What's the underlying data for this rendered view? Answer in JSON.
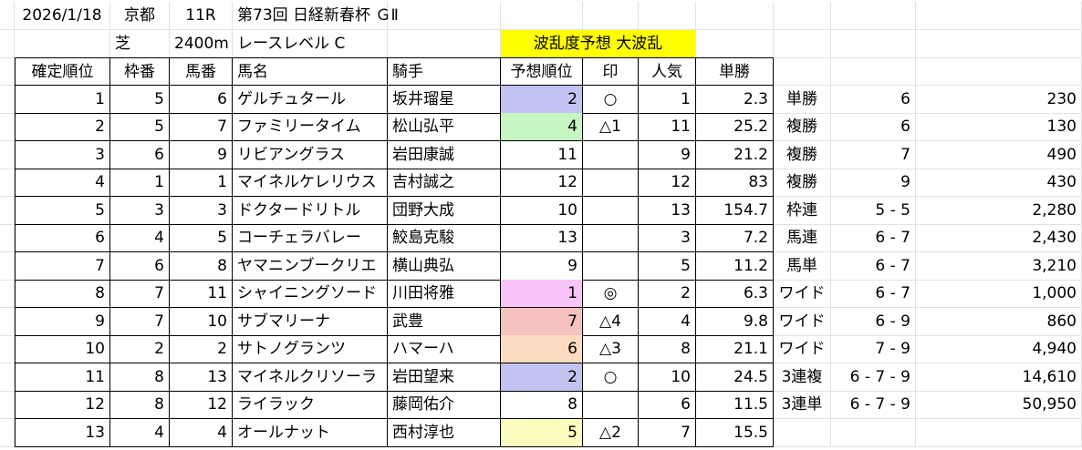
{
  "info": {
    "date": "2026/1/18",
    "venue": "京都",
    "race_no": "11R",
    "race_name": "第73回 日経新春杯 ＧⅡ",
    "surface": "芝",
    "distance": "2400m",
    "level": "レースレベル C",
    "banner": "波乱度予想 大波乱",
    "banner_color": "#ffff00"
  },
  "headers": [
    "確定順位",
    "枠番",
    "馬番",
    "馬名",
    "騎手",
    "予想順位",
    "印",
    "人気",
    "単勝"
  ],
  "rows": [
    {
      "rank": "1",
      "waku": "5",
      "uma": "6",
      "name": "ゲルチュタール",
      "jockey": "坂井瑠星",
      "pred": "2",
      "mark": "○",
      "pop": "1",
      "odds": "2.3",
      "color": "#c3c3f3"
    },
    {
      "rank": "2",
      "waku": "5",
      "uma": "7",
      "name": "ファミリータイム",
      "jockey": "松山弘平",
      "pred": "4",
      "mark": "△1",
      "pop": "11",
      "odds": "25.2",
      "color": "#c6f7c2"
    },
    {
      "rank": "3",
      "waku": "6",
      "uma": "9",
      "name": "リビアングラス",
      "jockey": "岩田康誠",
      "pred": "11",
      "mark": "",
      "pop": "9",
      "odds": "21.2",
      "color": ""
    },
    {
      "rank": "4",
      "waku": "1",
      "uma": "1",
      "name": "マイネルケレリウス",
      "jockey": "吉村誠之",
      "pred": "12",
      "mark": "",
      "pop": "12",
      "odds": "83",
      "color": ""
    },
    {
      "rank": "5",
      "waku": "3",
      "uma": "3",
      "name": "ドクタードリトル",
      "jockey": "団野大成",
      "pred": "10",
      "mark": "",
      "pop": "13",
      "odds": "154.7",
      "color": ""
    },
    {
      "rank": "6",
      "waku": "4",
      "uma": "5",
      "name": "コーチェラバレー",
      "jockey": "鮫島克駿",
      "pred": "13",
      "mark": "",
      "pop": "3",
      "odds": "7.2",
      "color": ""
    },
    {
      "rank": "7",
      "waku": "6",
      "uma": "8",
      "name": "ヤマニンブークリエ",
      "jockey": "横山典弘",
      "pred": "9",
      "mark": "",
      "pop": "5",
      "odds": "11.2",
      "color": ""
    },
    {
      "rank": "8",
      "waku": "7",
      "uma": "11",
      "name": "シャイニングソード",
      "jockey": "川田将雅",
      "pred": "1",
      "mark": "◎",
      "pop": "2",
      "odds": "6.3",
      "color": "#f9c4f7"
    },
    {
      "rank": "9",
      "waku": "7",
      "uma": "10",
      "name": "サブマリーナ",
      "jockey": "武豊",
      "pred": "7",
      "mark": "△4",
      "pop": "4",
      "odds": "9.8",
      "color": "#f6c2bf"
    },
    {
      "rank": "10",
      "waku": "2",
      "uma": "2",
      "name": "サトノグランツ",
      "jockey": "ハマーハ",
      "pred": "6",
      "mark": "△3",
      "pop": "8",
      "odds": "21.1",
      "color": "#fcdcc0"
    },
    {
      "rank": "11",
      "waku": "8",
      "uma": "13",
      "name": "マイネルクリソーラ",
      "jockey": "岩田望来",
      "pred": "2",
      "mark": "○",
      "pop": "10",
      "odds": "24.5",
      "color": "#c3c3f3"
    },
    {
      "rank": "12",
      "waku": "8",
      "uma": "12",
      "name": "ライラック",
      "jockey": "藤岡佑介",
      "pred": "8",
      "mark": "",
      "pop": "6",
      "odds": "11.5",
      "color": ""
    },
    {
      "rank": "13",
      "waku": "4",
      "uma": "4",
      "name": "オールナット",
      "jockey": "西村淳也",
      "pred": "5",
      "mark": "△2",
      "pop": "7",
      "odds": "15.5",
      "color": "#fcfcbe"
    }
  ],
  "payouts": [
    {
      "type": "単勝",
      "combo": "6",
      "amount": "230"
    },
    {
      "type": "複勝",
      "combo": "6",
      "amount": "130"
    },
    {
      "type": "複勝",
      "combo": "7",
      "amount": "490"
    },
    {
      "type": "複勝",
      "combo": "9",
      "amount": "430"
    },
    {
      "type": "枠連",
      "combo": "5 - 5",
      "amount": "2,280"
    },
    {
      "type": "馬連",
      "combo": "6 - 7",
      "amount": "2,430"
    },
    {
      "type": "馬単",
      "combo": "6 - 7",
      "amount": "3,210"
    },
    {
      "type": "ワイド",
      "combo": "6 - 7",
      "amount": "1,000"
    },
    {
      "type": "ワイド",
      "combo": "6 - 9",
      "amount": "860"
    },
    {
      "type": "ワイド",
      "combo": "7 - 9",
      "amount": "4,940"
    },
    {
      "type": "3連複",
      "combo": "6 - 7 - 9",
      "amount": "14,610"
    },
    {
      "type": "3連単",
      "combo": "6 - 7 - 9",
      "amount": "50,950"
    }
  ]
}
